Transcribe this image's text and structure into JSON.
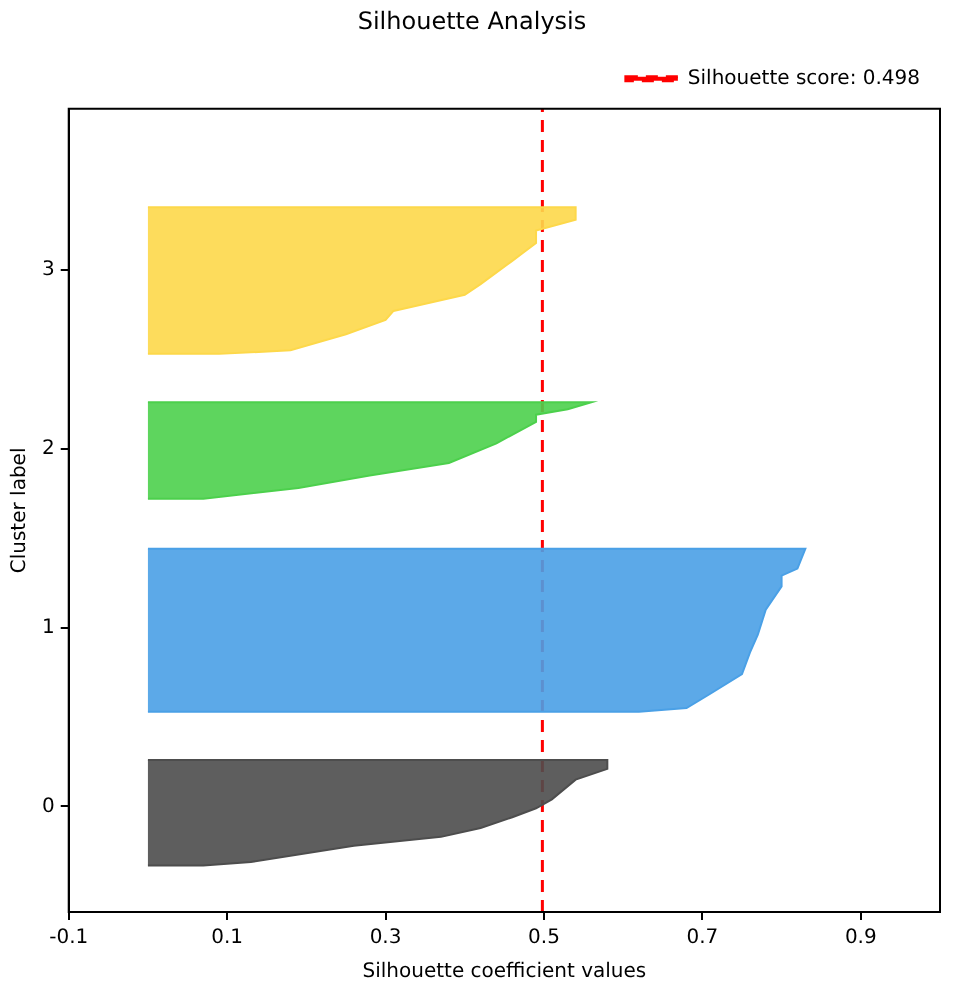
{
  "chart_data": {
    "type": "area",
    "orientation": "horizontal",
    "title": "Silhouette Analysis",
    "xlabel": "Silhouette coefficient values",
    "ylabel": "Cluster label",
    "xlim": [
      -0.1,
      1.0
    ],
    "xticks": [
      -0.1,
      0.1,
      0.3,
      0.5,
      0.7,
      0.9
    ],
    "ylim": [
      -0.59,
      3.9
    ],
    "yticks": [
      0,
      1,
      2,
      3
    ],
    "series": [
      {
        "color": "#4d4d4d",
        "x": [
          -0.33,
          -0.31,
          -0.22,
          -0.17,
          -0.12,
          -0.06,
          -0.01,
          0.04,
          0.15,
          0.21,
          0.26
        ],
        "values": [
          0.07,
          0.13,
          0.26,
          0.37,
          0.42,
          0.46,
          0.49,
          0.51,
          0.54,
          0.58,
          0.58
        ]
      },
      {
        "color": "#4aa0e6",
        "x": [
          0.53,
          0.55,
          0.63,
          0.74,
          0.86,
          0.96,
          1.1,
          1.23,
          1.29,
          1.33,
          1.44
        ],
        "values": [
          0.62,
          0.68,
          0.71,
          0.75,
          0.76,
          0.77,
          0.78,
          0.8,
          0.8,
          0.82,
          0.83
        ]
      },
      {
        "color": "#4cd04c",
        "x": [
          1.72,
          1.78,
          1.85,
          1.92,
          2.03,
          2.15,
          2.19,
          2.22,
          2.26
        ],
        "values": [
          0.07,
          0.19,
          0.28,
          0.38,
          0.44,
          0.49,
          0.49,
          0.53,
          0.56
        ]
      },
      {
        "color": "#fdd84a",
        "x": [
          2.53,
          2.55,
          2.64,
          2.72,
          2.77,
          2.86,
          2.92,
          3.05,
          3.15,
          3.22,
          3.28,
          3.35
        ],
        "values": [
          0.09,
          0.18,
          0.25,
          0.3,
          0.31,
          0.4,
          0.42,
          0.46,
          0.49,
          0.49,
          0.54,
          0.54
        ]
      }
    ],
    "ref_lines": [
      {
        "axis": "x",
        "value": 0.498,
        "label": "Silhouette score: 0.498",
        "color": "#ff0000",
        "line_style": "dashed"
      }
    ],
    "legend": "top right",
    "grid": false
  }
}
